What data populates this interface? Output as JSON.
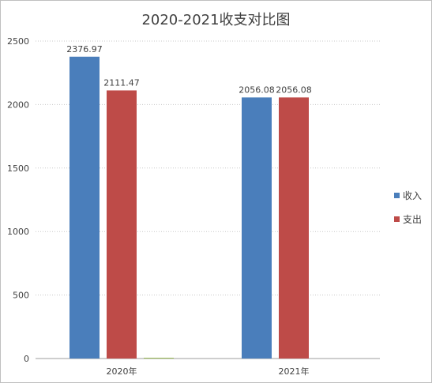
{
  "chart_data": {
    "type": "bar",
    "title": "2020-2021收支对比图",
    "categories": [
      "2020年",
      "2021年"
    ],
    "series": [
      {
        "name": "收入",
        "values": [
          2376.97,
          2056.08
        ],
        "labels": [
          "2376.97",
          "2056.08"
        ],
        "color": "#4a7ebb"
      },
      {
        "name": "支出",
        "values": [
          2111.47,
          2056.08
        ],
        "labels": [
          "2111.47",
          "2056.08"
        ],
        "color": "#be4b48"
      },
      {
        "name": "",
        "values": [
          0,
          null
        ],
        "labels": [
          "",
          ""
        ],
        "color": "#98b954"
      }
    ],
    "ylim": [
      0,
      2500
    ],
    "yticks": [
      0,
      500,
      1000,
      1500,
      2000,
      2500
    ],
    "ytick_labels": [
      "0",
      "500",
      "1000",
      "1500",
      "2000",
      "2500"
    ],
    "xlabel": "",
    "ylabel": "",
    "grid": true,
    "legend_position": "right"
  }
}
